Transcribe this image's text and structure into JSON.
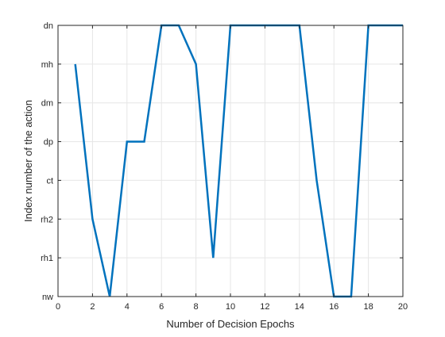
{
  "chart_data": {
    "type": "line",
    "title": "",
    "xlabel": "Number of Decision Epochs",
    "ylabel": "Index number of the action",
    "xlim": [
      0,
      20
    ],
    "x_ticks": [
      0,
      2,
      4,
      6,
      8,
      10,
      12,
      14,
      16,
      18,
      20
    ],
    "y_categories": [
      "nw",
      "rh1",
      "rh2",
      "ct",
      "dp",
      "dm",
      "mh",
      "dn"
    ],
    "grid": true,
    "legend": "none",
    "series": [
      {
        "color": "#0072BD",
        "x": [
          1,
          2,
          3,
          4,
          5,
          6,
          7,
          8,
          9,
          10,
          11,
          12,
          13,
          14,
          15,
          16,
          17,
          18,
          19,
          20
        ],
        "y": [
          "mh",
          "rh2",
          "nw",
          "dp",
          "dp",
          "dn",
          "dn",
          "mh",
          "rh1",
          "dn",
          "dn",
          "dn",
          "dn",
          "dn",
          "ct",
          "nw",
          "nw",
          "dn",
          "dn",
          "dn"
        ]
      }
    ]
  },
  "colors": {
    "grid": "#e6e6e6",
    "axis": "#262626",
    "line": "#0072BD"
  }
}
